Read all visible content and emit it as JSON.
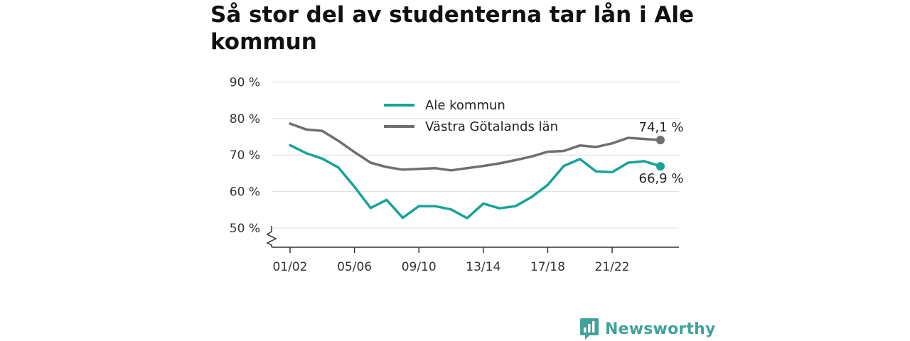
{
  "title": "Så stor del av studenterna tar lån i Ale kommun",
  "brand": {
    "name": "Newsworthy",
    "icon": "newsworthy-logo-icon",
    "color": "#3fa39a"
  },
  "chart_data": {
    "type": "line",
    "title": "Så stor del av studenterna tar lån i Ale kommun",
    "xlabel": "",
    "ylabel": "",
    "x": [
      "01/02",
      "02/03",
      "03/04",
      "04/05",
      "05/06",
      "06/07",
      "07/08",
      "08/09",
      "09/10",
      "10/11",
      "11/12",
      "12/13",
      "13/14",
      "14/15",
      "15/16",
      "16/17",
      "17/18",
      "18/19",
      "19/20",
      "20/21",
      "21/22",
      "22/23",
      "23/24",
      "24/25"
    ],
    "x_tick_labels": [
      "01/02",
      "05/06",
      "09/10",
      "13/14",
      "17/18",
      "21/22"
    ],
    "y_ticks": [
      50,
      60,
      70,
      80,
      90
    ],
    "y_tick_suffix": " %",
    "ylim": [
      45,
      90
    ],
    "y_axis_break": true,
    "grid": true,
    "legend_position": "top-center",
    "series": [
      {
        "name": "Ale kommun",
        "color": "#18a399",
        "values": [
          72.7,
          70.5,
          69.0,
          66.6,
          61.3,
          55.5,
          57.7,
          52.8,
          56.0,
          56.0,
          55.1,
          52.7,
          56.7,
          55.4,
          56.0,
          58.5,
          61.8,
          67.0,
          68.9,
          65.5,
          65.3,
          67.9,
          68.3,
          66.9
        ],
        "end_label": "66,9 %"
      },
      {
        "name": "Västra Götalands län",
        "color": "#6f6e72",
        "values": [
          78.6,
          77.0,
          76.6,
          73.9,
          70.8,
          67.9,
          66.7,
          66.0,
          66.2,
          66.4,
          65.8,
          66.4,
          67.0,
          67.7,
          68.6,
          69.6,
          70.9,
          71.1,
          72.6,
          72.2,
          73.2,
          74.7,
          74.4,
          74.1
        ],
        "end_label": "74,1 %"
      }
    ]
  }
}
